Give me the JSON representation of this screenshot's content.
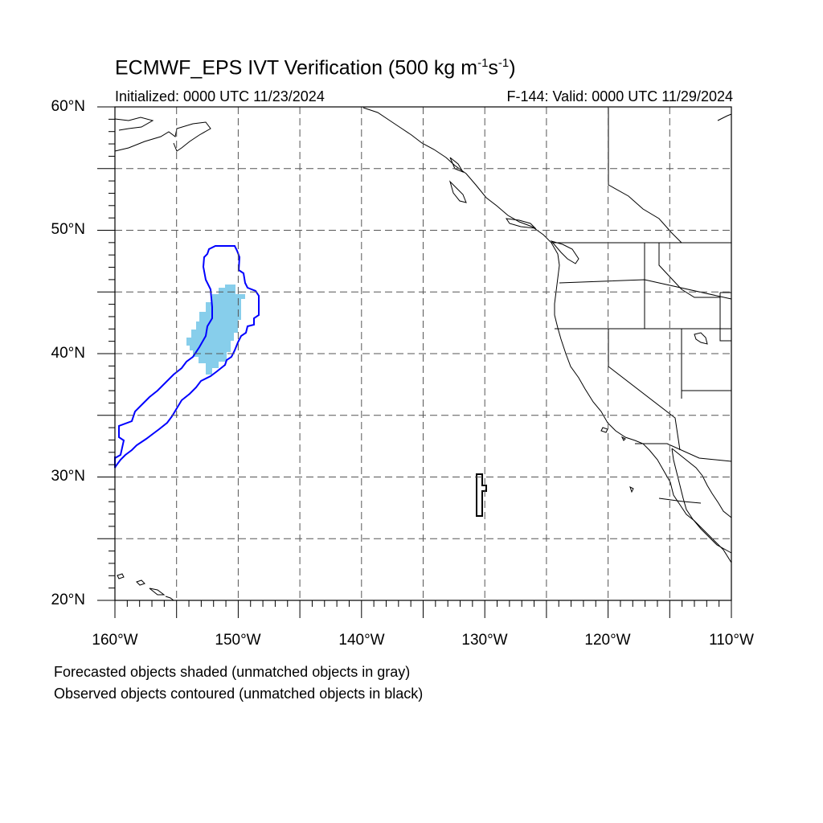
{
  "figure": {
    "title_main": "ECMWF_EPS IVT Verification (500 kg m",
    "title_sup1": "-1",
    "title_mid": "s",
    "title_sup2": "-1",
    "title_end": ")",
    "initialized": "Initialized: 0000 UTC 11/23/2024",
    "valid": "F-144: Valid: 0000 UTC 11/29/2024",
    "note_forecast": "Forecasted objects shaded (unmatched objects in gray)",
    "note_observed": "Observed objects contoured (unmatched objects in black)"
  },
  "axes": {
    "lon_range": [
      -160,
      -110
    ],
    "lat_range": [
      20,
      60
    ],
    "lat_labels": [
      "60°N",
      "50°N",
      "40°N",
      "30°N",
      "20°N"
    ],
    "lon_labels": [
      "160°W",
      "150°W",
      "140°W",
      "130°W",
      "120°W",
      "110°W"
    ]
  },
  "colors": {
    "forecast_fill": "#87ceeb",
    "matched_contour": "#0000ff",
    "unmatched_contour": "#000000",
    "coastline": "#000000",
    "grid": "#555555"
  }
}
